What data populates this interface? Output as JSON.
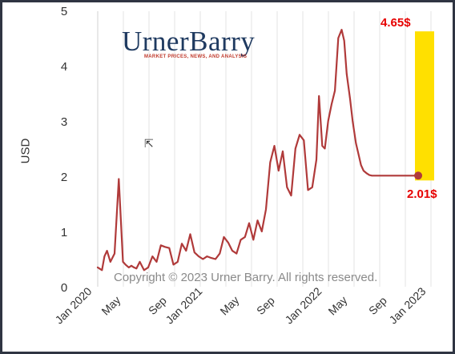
{
  "chart_data": {
    "type": "line",
    "title": "",
    "xlabel": "",
    "ylabel": "USD",
    "ylim": [
      0,
      5
    ],
    "yticks": [
      0,
      1,
      2,
      3,
      4,
      5
    ],
    "grid": "vertical",
    "x_tick_labels": [
      "Jan 2020",
      "May",
      "Sep",
      "Jan 2021",
      "May",
      "Sep",
      "Jan 2022",
      "May",
      "Sep",
      "Jan 2023"
    ],
    "series": [
      {
        "color": "#b03a3a",
        "x": [
          0.0,
          0.5,
          0.8,
          1.1,
          1.5,
          2.0,
          2.5,
          3.0,
          3.3,
          3.7,
          4.0,
          4.3,
          4.6,
          5.0,
          5.5,
          6.0,
          6.5,
          7.0,
          7.5,
          8.0,
          8.5,
          9.0,
          9.5,
          10.0,
          10.5,
          11.0,
          11.5,
          12.0,
          12.5,
          13.0,
          13.5,
          14.0,
          14.5,
          15.0,
          15.5,
          16.0,
          16.5,
          17.0,
          17.5,
          18.0,
          18.5,
          19.0,
          19.5,
          20.0,
          20.5,
          21.0,
          21.5,
          22.0,
          22.5,
          23.0,
          23.5,
          24.0,
          24.5,
          25.0,
          25.5,
          26.0,
          26.3,
          26.7,
          27.0,
          27.4,
          27.8,
          28.2,
          28.6,
          29.0,
          29.3,
          29.6,
          30.0,
          30.3,
          30.7,
          31.0,
          31.3,
          31.6,
          32.0,
          32.3,
          32.6,
          33.0,
          33.3,
          33.5,
          33.8,
          34.1,
          34.4,
          34.7,
          35.0,
          35.3,
          35.6,
          36.0,
          36.3,
          36.6,
          37.0,
          37.5,
          38.1
        ],
        "values": [
          0.35,
          0.3,
          0.55,
          0.65,
          0.45,
          0.6,
          1.95,
          0.45,
          0.4,
          0.35,
          0.38,
          0.35,
          0.33,
          0.45,
          0.3,
          0.35,
          0.55,
          0.45,
          0.75,
          0.72,
          0.7,
          0.4,
          0.45,
          0.78,
          0.65,
          0.95,
          0.62,
          0.55,
          0.5,
          0.55,
          0.52,
          0.5,
          0.6,
          0.9,
          0.8,
          0.65,
          0.6,
          0.85,
          0.9,
          1.15,
          0.85,
          1.2,
          1.0,
          1.4,
          2.25,
          2.55,
          2.1,
          2.45,
          1.8,
          1.65,
          2.5,
          2.75,
          2.65,
          1.75,
          1.8,
          2.3,
          3.45,
          2.55,
          2.5,
          3.0,
          3.3,
          3.55,
          4.5,
          4.65,
          4.45,
          3.85,
          3.4,
          3.0,
          2.6,
          2.4,
          2.2,
          2.1,
          2.05,
          2.02,
          2.01,
          2.01,
          2.01,
          2.01,
          2.01,
          2.01,
          2.01,
          2.01,
          2.01,
          2.01,
          2.01,
          2.01,
          2.01,
          2.01,
          2.01,
          2.01,
          2.01
        ]
      }
    ],
    "highlight": {
      "from_value": 4.65,
      "to_value": 2.01,
      "color": "#ffe000"
    },
    "annotations": [
      "4.65$",
      "2.01$"
    ]
  },
  "logo": {
    "name": "UrnerBarry",
    "tagline": "MARKET PRICES, NEWS, AND ANALYSIS"
  },
  "watermark": "Copyright © 2023 Urner Barry. All rights reserved."
}
